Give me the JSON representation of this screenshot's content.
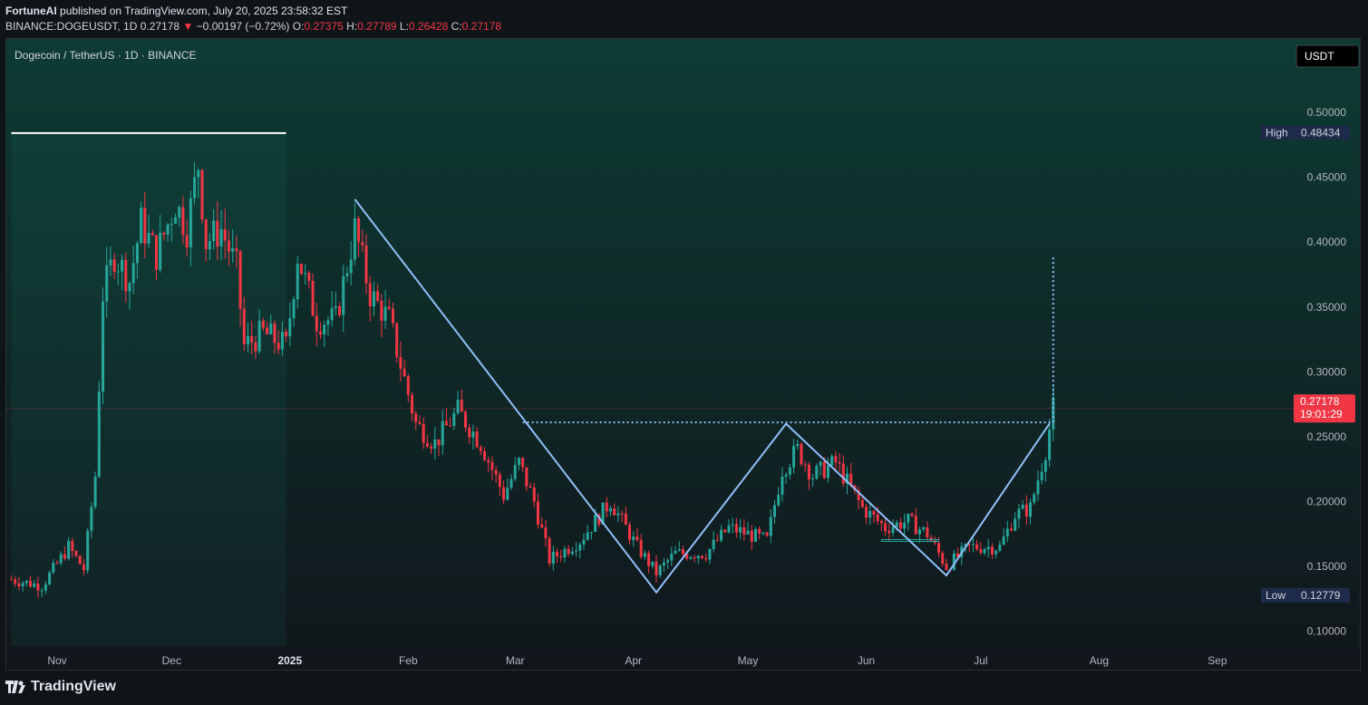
{
  "header": {
    "author": "FortuneAI",
    "published_text": "published on TradingView.com, July 20, 2025 23:58:32 EST",
    "symbol_line": "BINANCE:DOGEUSDT, 1D",
    "last": "0.27178",
    "arrow": "▼",
    "change": "−0.00197 (−0.72%)",
    "o_label": "O:",
    "o_val": "0.27375",
    "h_label": "H:",
    "h_val": "0.27789",
    "l_label": "L:",
    "l_val": "0.26428",
    "c_label": "C:",
    "c_val": "0.27178"
  },
  "chart_title": "Dogecoin / TetherUS · 1D · BINANCE",
  "currency_button": "USDT",
  "high_marker": {
    "label": "High",
    "value": "0.48434"
  },
  "low_marker": {
    "label": "Low",
    "value": "0.12779"
  },
  "price_tag": {
    "value": "0.27178",
    "countdown": "19:01:29"
  },
  "footer": {
    "brand": "TradingView"
  },
  "colors": {
    "up": "#26a69a",
    "down": "#f23645",
    "pattern": "#90bff9",
    "bg_top": "#0d3b33",
    "bg_bottom": "#0f1419"
  },
  "chart_data": {
    "type": "candlestick",
    "symbol": "DOGEUSDT",
    "interval": "1D",
    "y_ticks": [
      0.5,
      0.45,
      0.4,
      0.35,
      0.3,
      0.25,
      0.2,
      0.15,
      0.1
    ],
    "y_tick_labels": [
      "0.50000",
      "0.45000",
      "0.40000",
      "0.35000",
      "0.30000",
      "0.25000",
      "0.20000",
      "0.15000",
      "0.10000"
    ],
    "x_ticks": [
      {
        "date": "2024-11-01",
        "label": "Nov"
      },
      {
        "date": "2024-12-01",
        "label": "Dec"
      },
      {
        "date": "2025-01-01",
        "label": "2025"
      },
      {
        "date": "2025-02-01",
        "label": "Feb"
      },
      {
        "date": "2025-03-01",
        "label": "Mar"
      },
      {
        "date": "2025-04-01",
        "label": "Apr"
      },
      {
        "date": "2025-05-01",
        "label": "May"
      },
      {
        "date": "2025-06-01",
        "label": "Jun"
      },
      {
        "date": "2025-07-01",
        "label": "Jul"
      },
      {
        "date": "2025-08-01",
        "label": "Aug"
      },
      {
        "date": "2025-09-01",
        "label": "Sep"
      }
    ],
    "price_path": [
      [
        "2024-10-20",
        0.14
      ],
      [
        "2024-10-28",
        0.135
      ],
      [
        "2024-11-04",
        0.165
      ],
      [
        "2024-11-08",
        0.148
      ],
      [
        "2024-11-11",
        0.22
      ],
      [
        "2024-11-13",
        0.36
      ],
      [
        "2024-11-16",
        0.39
      ],
      [
        "2024-11-20",
        0.37
      ],
      [
        "2024-11-23",
        0.415
      ],
      [
        "2024-11-27",
        0.39
      ],
      [
        "2024-12-02",
        0.43
      ],
      [
        "2024-12-05",
        0.41
      ],
      [
        "2024-12-08",
        0.46
      ],
      [
        "2024-12-10",
        0.4
      ],
      [
        "2024-12-14",
        0.41
      ],
      [
        "2024-12-18",
        0.38
      ],
      [
        "2024-12-20",
        0.32
      ],
      [
        "2024-12-25",
        0.33
      ],
      [
        "2024-12-31",
        0.32
      ],
      [
        "2025-01-03",
        0.39
      ],
      [
        "2025-01-08",
        0.34
      ],
      [
        "2025-01-13",
        0.34
      ],
      [
        "2025-01-18",
        0.41
      ],
      [
        "2025-01-22",
        0.36
      ],
      [
        "2025-01-27",
        0.34
      ],
      [
        "2025-02-03",
        0.26
      ],
      [
        "2025-02-08",
        0.245
      ],
      [
        "2025-02-14",
        0.27
      ],
      [
        "2025-02-20",
        0.245
      ],
      [
        "2025-02-26",
        0.205
      ],
      [
        "2025-03-02",
        0.23
      ],
      [
        "2025-03-06",
        0.2
      ],
      [
        "2025-03-10",
        0.155
      ],
      [
        "2025-03-18",
        0.17
      ],
      [
        "2025-03-26",
        0.2
      ],
      [
        "2025-04-02",
        0.165
      ],
      [
        "2025-04-07",
        0.145
      ],
      [
        "2025-04-12",
        0.16
      ],
      [
        "2025-04-20",
        0.16
      ],
      [
        "2025-04-26",
        0.18
      ],
      [
        "2025-05-06",
        0.17
      ],
      [
        "2025-05-10",
        0.225
      ],
      [
        "2025-05-14",
        0.24
      ],
      [
        "2025-05-18",
        0.22
      ],
      [
        "2025-05-24",
        0.23
      ],
      [
        "2025-05-31",
        0.195
      ],
      [
        "2025-06-06",
        0.18
      ],
      [
        "2025-06-12",
        0.185
      ],
      [
        "2025-06-17",
        0.175
      ],
      [
        "2025-06-22",
        0.15
      ],
      [
        "2025-06-28",
        0.165
      ],
      [
        "2025-07-06",
        0.165
      ],
      [
        "2025-07-10",
        0.19
      ],
      [
        "2025-07-14",
        0.195
      ],
      [
        "2025-07-18",
        0.24
      ],
      [
        "2025-07-20",
        0.272
      ]
    ],
    "period_high": 0.48434,
    "period_low": 0.12779,
    "last_price": 0.27178,
    "pattern_points": [
      {
        "date": "2025-01-18",
        "price": 0.433
      },
      {
        "date": "2025-04-07",
        "price": 0.13
      },
      {
        "date": "2025-05-11",
        "price": 0.26
      },
      {
        "date": "2025-06-22",
        "price": 0.143
      },
      {
        "date": "2025-07-19",
        "price": 0.26
      }
    ],
    "neckline": {
      "from": "2025-03-03",
      "to": "2025-07-20",
      "price": 0.261
    },
    "target_line": {
      "date": "2025-07-20",
      "from_price": 0.261,
      "to_price": 0.39
    },
    "highlight_range": {
      "from": "2024-10-20",
      "to": "2024-12-31",
      "top_price": 0.484
    },
    "small_box": {
      "from": "2025-06-05",
      "to": "2025-06-20",
      "price": 0.17
    }
  }
}
